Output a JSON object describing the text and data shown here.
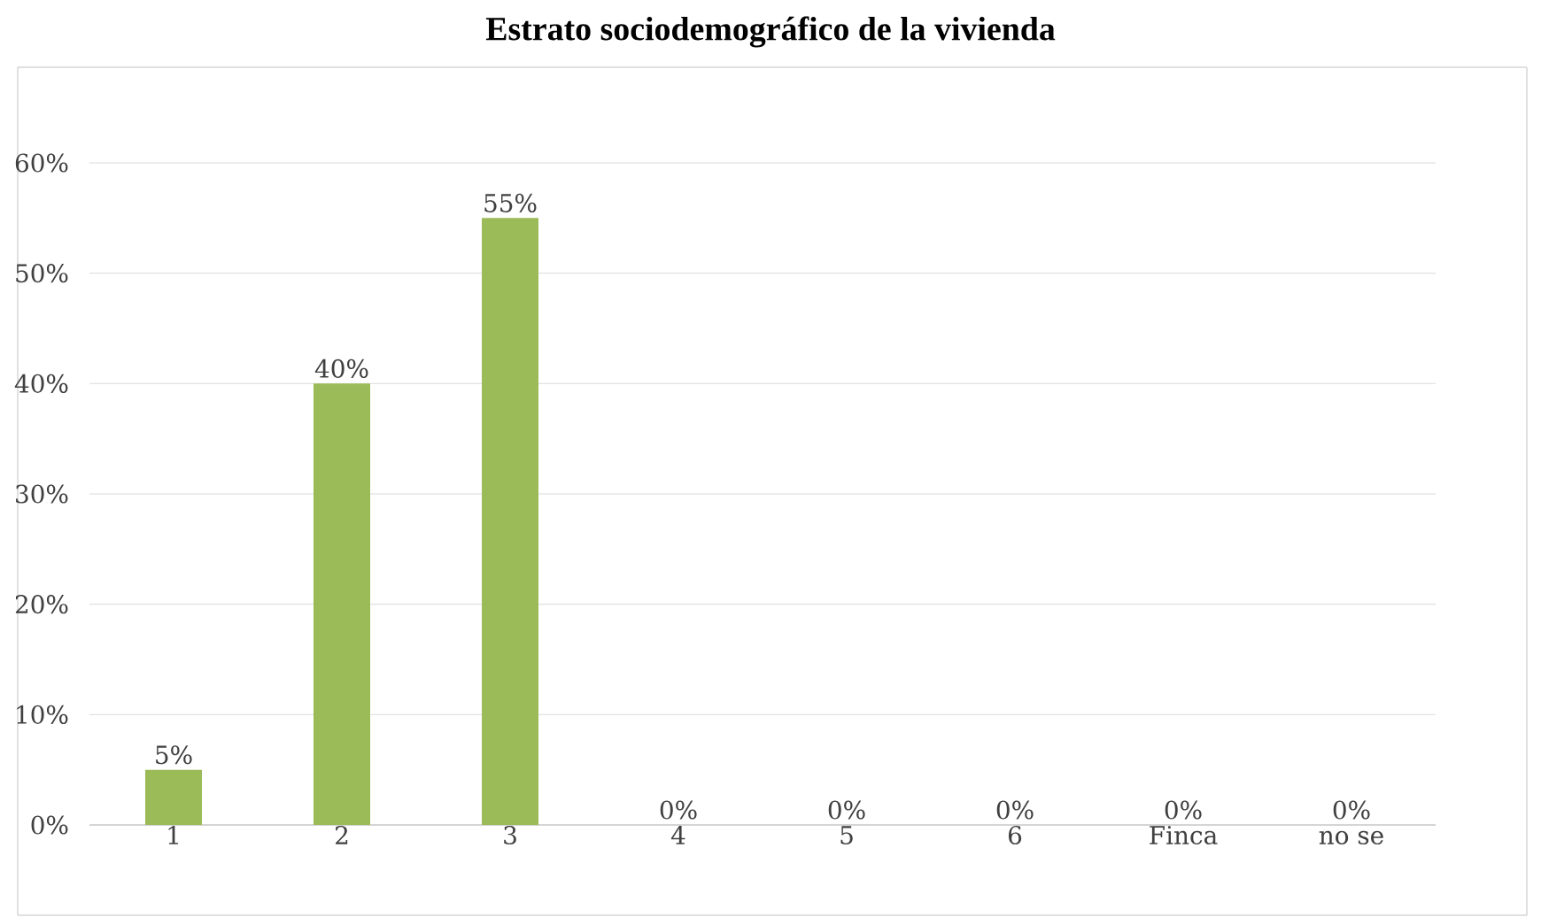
{
  "chart_data": {
    "type": "bar",
    "title": "Estrato sociodemográfico de la vivienda",
    "categories": [
      "1",
      "2",
      "3",
      "4",
      "5",
      "6",
      "Finca",
      "no se"
    ],
    "values": [
      5,
      40,
      55,
      0,
      0,
      0,
      0,
      0
    ],
    "value_labels": [
      "5%",
      "40%",
      "55%",
      "0%",
      "0%",
      "0%",
      "0%",
      "0%"
    ],
    "color": "#9bbb59",
    "ylim": [
      0,
      60
    ],
    "yticks": [
      {
        "value": 0,
        "label": "0%"
      },
      {
        "value": 10,
        "label": "10%"
      },
      {
        "value": 20,
        "label": "20%"
      },
      {
        "value": 30,
        "label": "30%"
      },
      {
        "value": 40,
        "label": "40%"
      },
      {
        "value": 50,
        "label": "50%"
      },
      {
        "value": 60,
        "label": "60%"
      }
    ],
    "grid": "y"
  }
}
